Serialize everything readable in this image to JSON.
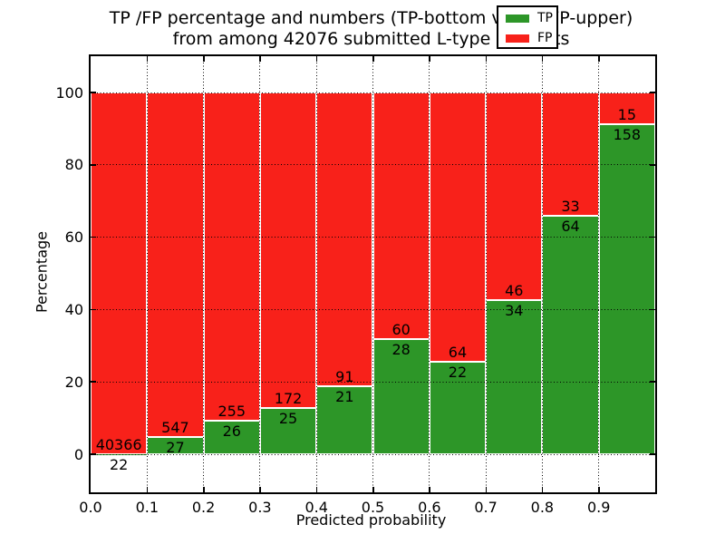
{
  "title": {
    "line1": "TP /FP percentage and numbers (TP-bottom value, FP-upper)",
    "line2": "from among 42076 submitted L-type contacts"
  },
  "axes": {
    "xlabel": "Predicted probability",
    "ylabel": "Percentage",
    "x_tick_labels": [
      "0.0",
      "0.1",
      "0.2",
      "0.3",
      "0.4",
      "0.5",
      "0.6",
      "0.7",
      "0.8",
      "0.9"
    ],
    "y_tick_labels": [
      "0",
      "20",
      "40",
      "60",
      "80",
      "100"
    ],
    "y_tick_values": [
      0,
      20,
      40,
      60,
      80,
      100
    ]
  },
  "legend": {
    "items": [
      {
        "label": "TP",
        "color": "#2d9628"
      },
      {
        "label": "FP",
        "color": "#f8211a"
      }
    ]
  },
  "colors": {
    "tp": "#2d9628",
    "fp": "#f8211a",
    "bar_edge": "#ffffff",
    "grid": "#000000",
    "background": "#ffffff",
    "text": "#000000"
  },
  "chart_data": {
    "type": "bar",
    "stacked": true,
    "title": "TP /FP percentage and numbers (TP-bottom value, FP-upper) from among 42076 submitted L-type contacts",
    "xlabel": "Predicted probability",
    "ylabel": "Percentage",
    "categories": [
      "0.0-0.1",
      "0.1-0.2",
      "0.2-0.3",
      "0.3-0.4",
      "0.4-0.5",
      "0.5-0.6",
      "0.6-0.7",
      "0.7-0.8",
      "0.8-0.9",
      "0.9-1.0"
    ],
    "bin_width": 0.1,
    "series": [
      {
        "name": "TP",
        "counts": [
          22,
          27,
          26,
          25,
          21,
          28,
          22,
          34,
          64,
          158
        ]
      },
      {
        "name": "FP",
        "counts": [
          40366,
          547,
          255,
          172,
          91,
          60,
          64,
          46,
          33,
          15
        ]
      }
    ],
    "bar_values_shown": "counts (TP number below segment boundary, FP number above it); bar heights are percentage shares per bin summing to 100",
    "tp_percent_per_bin": [
      0.05,
      4.7,
      9.25,
      12.69,
      18.75,
      31.82,
      25.58,
      42.5,
      65.98,
      91.33
    ],
    "total_contacts": 42076,
    "xlim": [
      0.0,
      1.0
    ],
    "ylim": [
      -10.5,
      110
    ],
    "grid": "dotted, both axes",
    "legend_position": "upper right"
  }
}
